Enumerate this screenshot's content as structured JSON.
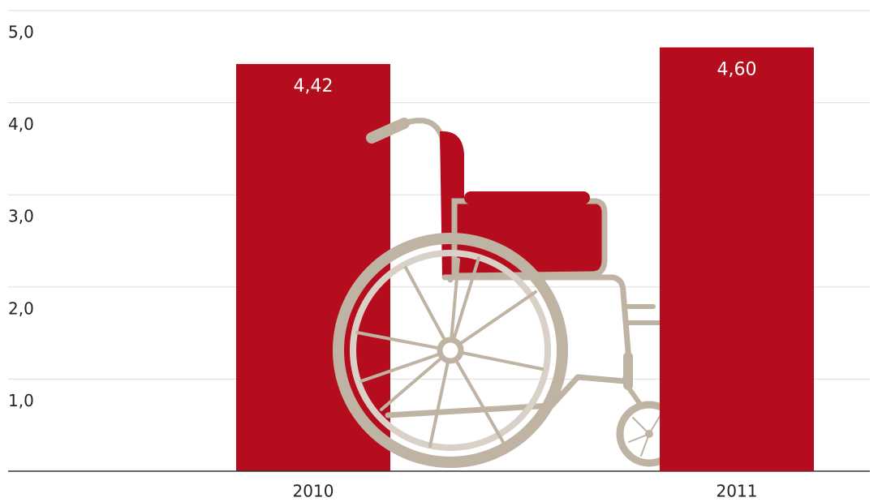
{
  "chart_data": {
    "type": "bar",
    "categories": [
      "2010",
      "2011"
    ],
    "values": [
      4.42,
      4.6
    ],
    "value_labels": [
      "4,42",
      "4,60"
    ],
    "color": "#b50d1e",
    "ylim": [
      0,
      5
    ],
    "yticks": [
      {
        "value": 1,
        "label": "1,0"
      },
      {
        "value": 2,
        "label": "2,0"
      },
      {
        "value": 3,
        "label": "3,0"
      },
      {
        "value": 4,
        "label": "4,0"
      },
      {
        "value": 5,
        "label": "5,0"
      }
    ],
    "grid": true
  }
}
